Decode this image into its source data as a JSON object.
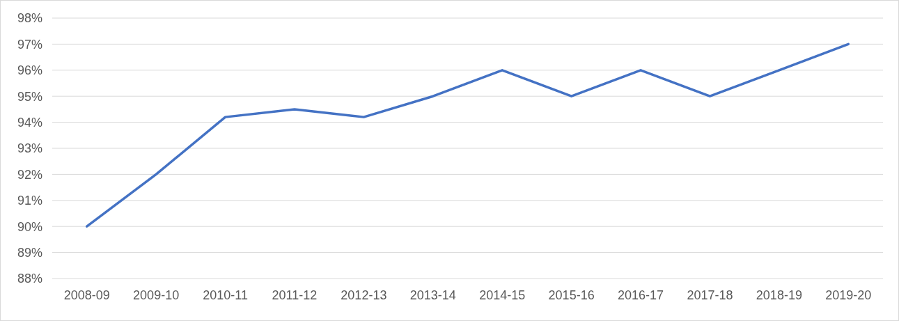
{
  "chart_data": {
    "type": "line",
    "categories": [
      "2008-09",
      "2009-10",
      "2010-11",
      "2011-12",
      "2012-13",
      "2013-14",
      "2014-15",
      "2015-16",
      "2016-17",
      "2017-18",
      "2018-19",
      "2019-20"
    ],
    "series": [
      {
        "color": "#4472c4",
        "values": [
          90,
          92,
          94.2,
          94.5,
          94.2,
          95,
          96,
          95,
          96,
          95,
          96,
          97
        ]
      }
    ],
    "ylim": [
      88,
      98
    ],
    "yticks": [
      {
        "value": 88,
        "label": "88%"
      },
      {
        "value": 89,
        "label": "89%"
      },
      {
        "value": 90,
        "label": "90%"
      },
      {
        "value": 91,
        "label": "91%"
      },
      {
        "value": 92,
        "label": "92%"
      },
      {
        "value": 93,
        "label": "93%"
      },
      {
        "value": 94,
        "label": "94%"
      },
      {
        "value": 95,
        "label": "95%"
      },
      {
        "value": 96,
        "label": "96%"
      },
      {
        "value": 97,
        "label": "97%"
      },
      {
        "value": 98,
        "label": "98%"
      }
    ],
    "grid": "y",
    "marker": "none",
    "line_style": "solid"
  }
}
